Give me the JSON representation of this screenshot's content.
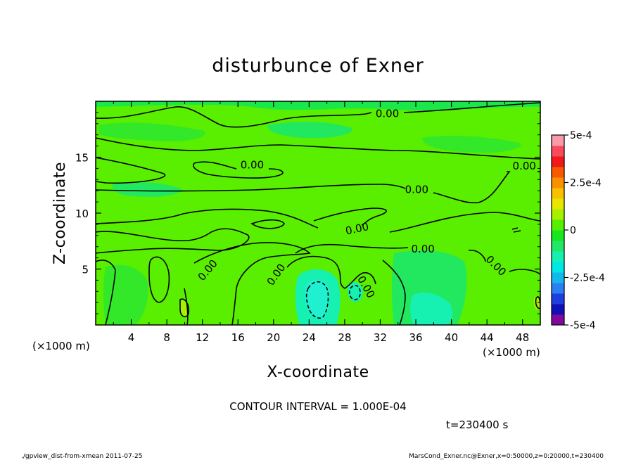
{
  "chart_data": {
    "type": "contour",
    "title": "disturbunce of Exner",
    "xlabel": "X-coordinate",
    "ylabel": "Z-coordinate",
    "x_unit": "(×1000 m)",
    "x_unit_right": "(×1000 m)",
    "xlim": [
      0,
      50
    ],
    "ylim": [
      0,
      20
    ],
    "x_ticks": [
      "4",
      "8",
      "12",
      "16",
      "20",
      "24",
      "28",
      "32",
      "36",
      "40",
      "44",
      "48"
    ],
    "y_ticks": [
      "5",
      "10",
      "15"
    ],
    "contour_interval_text": "CONTOUR INTERVAL = 1.000E-04",
    "contour_labels": [
      "0.00",
      "0.00",
      "0.00",
      "0.00",
      "0.00",
      "0.00",
      "0.00",
      "0.00",
      "0.00",
      "0.00"
    ],
    "colorbar": {
      "min": -0.0005,
      "max": 0.0005,
      "tick_labels": [
        "5e-4",
        "2.5e-4",
        "0",
        "-2.5e-4",
        "-5e-4"
      ],
      "colors": [
        "#7f0a9c",
        "#1010b8",
        "#1f3ee0",
        "#2a7ff2",
        "#13b8ec",
        "#00e8e6",
        "#16f0b0",
        "#22e866",
        "#18e620",
        "#58ee00",
        "#a6f000",
        "#e6e600",
        "#f8c000",
        "#f89000",
        "#f85800",
        "#f01818",
        "#f84a5a",
        "#f89aa8"
      ]
    },
    "time_text": "t=230400 s",
    "footer_left": "./gpview_dist-from-xmean  2011-07-25",
    "footer_right": "MarsCond_Exner.nc@Exner,x=0:50000,z=0:20000,t=230400"
  }
}
